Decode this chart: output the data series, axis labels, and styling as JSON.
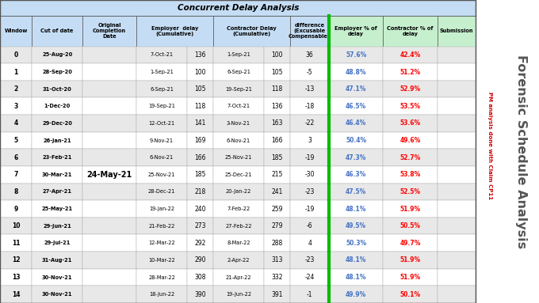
{
  "title": "Concurrent Delay Analysis",
  "side_text": "Forensic Schedule Analysis",
  "side_text_red": "PM analysis done with Claim CP11",
  "rows": [
    [
      0,
      "25-Aug-20",
      "",
      "7-Oct-21",
      136,
      "1-Sep-21",
      100,
      36,
      "57.6%",
      "42.4%",
      ""
    ],
    [
      1,
      "28-Sep-20",
      "",
      "1-Sep-21",
      100,
      "6-Sep-21",
      105,
      -5,
      "48.8%",
      "51.2%",
      ""
    ],
    [
      2,
      "31-Oct-20",
      "",
      "6-Sep-21",
      105,
      "19-Sep-21",
      118,
      -13,
      "47.1%",
      "52.9%",
      ""
    ],
    [
      3,
      "1-Dec-20",
      "",
      "19-Sep-21",
      118,
      "7-Oct-21",
      136,
      -18,
      "46.5%",
      "53.5%",
      ""
    ],
    [
      4,
      "29-Dec-20",
      "",
      "12-Oct-21",
      141,
      "3-Nov-21",
      163,
      -22,
      "46.4%",
      "53.6%",
      ""
    ],
    [
      5,
      "26-Jan-21",
      "",
      "9-Nov-21",
      169,
      "6-Nov-21",
      166,
      3,
      "50.4%",
      "49.6%",
      ""
    ],
    [
      6,
      "23-Feb-21",
      "",
      "6-Nov-21",
      166,
      "25-Nov-21",
      185,
      -19,
      "47.3%",
      "52.7%",
      ""
    ],
    [
      7,
      "30-Mar-21",
      "24-May-21",
      "25-Nov-21",
      185,
      "25-Dec-21",
      215,
      -30,
      "46.3%",
      "53.8%",
      ""
    ],
    [
      8,
      "27-Apr-21",
      "",
      "28-Dec-21",
      218,
      "20-Jan-22",
      241,
      -23,
      "47.5%",
      "52.5%",
      ""
    ],
    [
      9,
      "25-May-21",
      "",
      "19-Jan-22",
      240,
      "7-Feb-22",
      259,
      -19,
      "48.1%",
      "51.9%",
      ""
    ],
    [
      10,
      "29-Jun-21",
      "",
      "21-Feb-22",
      273,
      "27-Feb-22",
      279,
      -6,
      "49.5%",
      "50.5%",
      ""
    ],
    [
      11,
      "29-Jul-21",
      "",
      "12-Mar-22",
      292,
      "8-Mar-22",
      288,
      4,
      "50.3%",
      "49.7%",
      ""
    ],
    [
      12,
      "31-Aug-21",
      "",
      "10-Mar-22",
      290,
      "2-Apr-22",
      313,
      -23,
      "48.1%",
      "51.9%",
      ""
    ],
    [
      13,
      "30-Nov-21",
      "",
      "28-Mar-22",
      308,
      "21-Apr-22",
      332,
      -24,
      "48.1%",
      "51.9%",
      ""
    ],
    [
      14,
      "30-Nov-21",
      "",
      "18-Jun-22",
      390,
      "19-Jun-22",
      391,
      -1,
      "49.9%",
      "50.1%",
      ""
    ]
  ],
  "header_bg": "#c5ddf4",
  "header_bg_green": "#c6efce",
  "title_bg": "#c5ddf4",
  "row_bg_even": "#e8e8e8",
  "row_bg_odd": "#ffffff",
  "employer_color": "#4472c4",
  "contractor_color": "#ff0000",
  "figsize": [
    6.8,
    3.83
  ],
  "dpi": 100
}
